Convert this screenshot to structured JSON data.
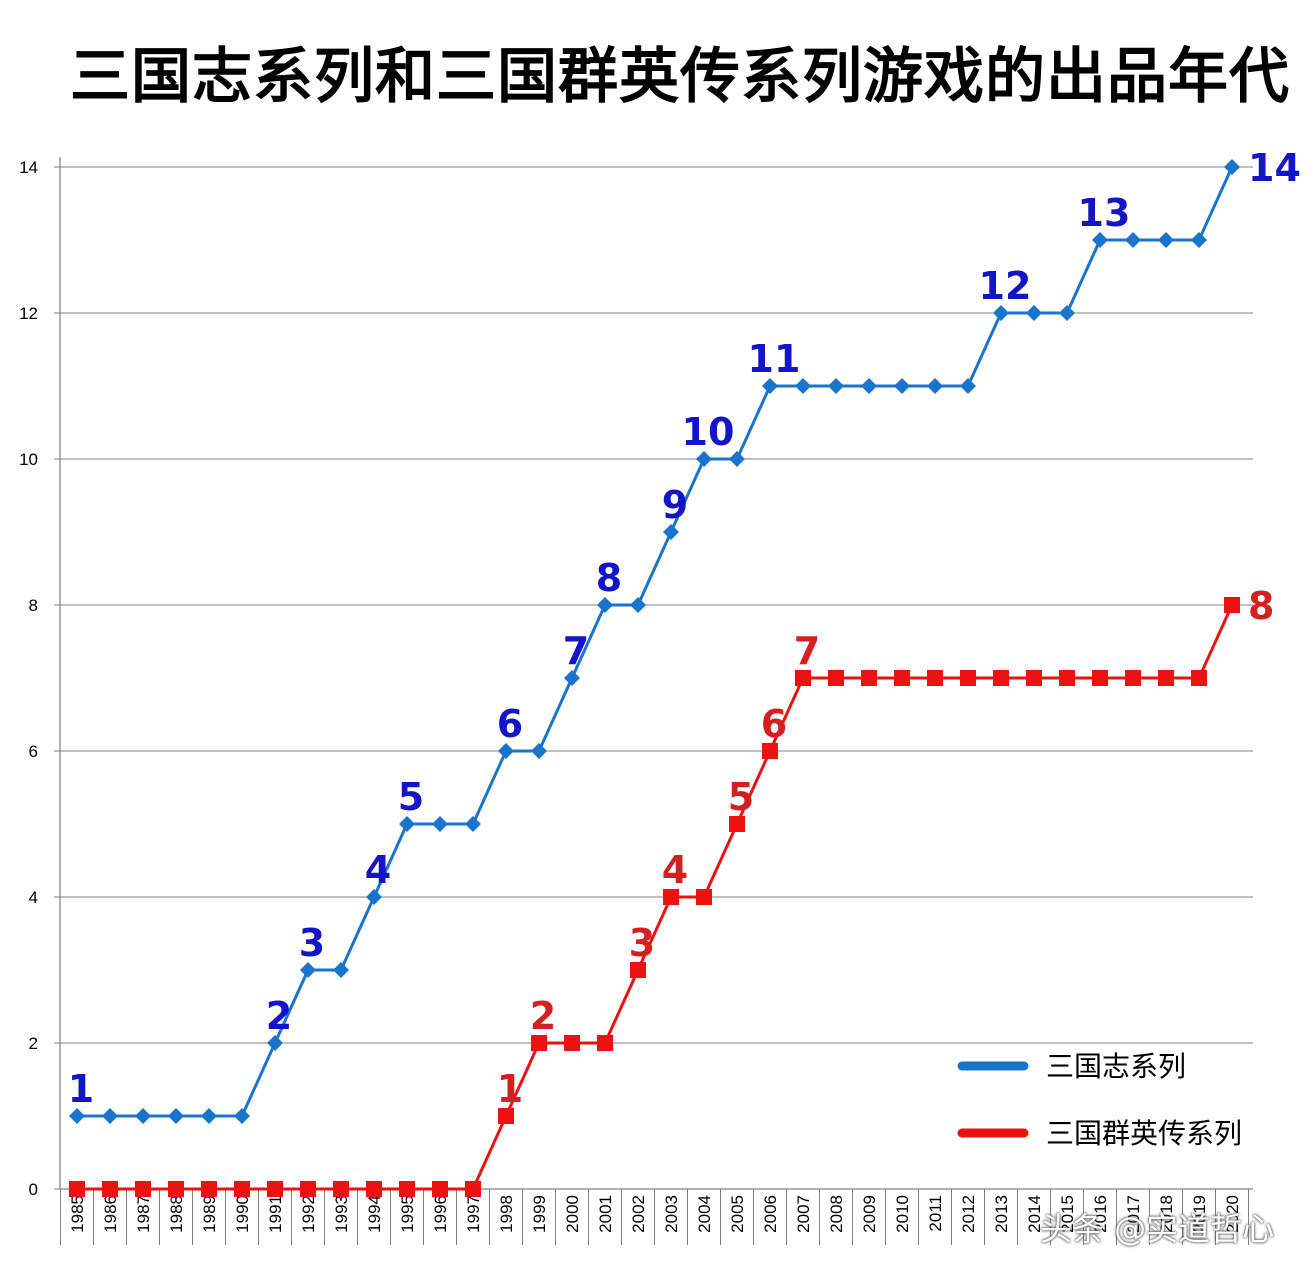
{
  "chart_data": {
    "type": "line",
    "title": "三国志系列和三国群英传系列游戏的出品年代",
    "xlabel": "",
    "ylabel": "",
    "x": [
      1985,
      1986,
      1987,
      1988,
      1989,
      1990,
      1991,
      1992,
      1993,
      1994,
      1995,
      1996,
      1997,
      1998,
      1999,
      2000,
      2001,
      2002,
      2003,
      2004,
      2005,
      2006,
      2007,
      2008,
      2009,
      2010,
      2011,
      2012,
      2013,
      2014,
      2015,
      2016,
      2017,
      2018,
      2019,
      2020
    ],
    "ylim": [
      0,
      14
    ],
    "yticks": [
      0,
      2,
      4,
      6,
      8,
      10,
      12,
      14
    ],
    "grid": true,
    "legend_position": "bottom-right",
    "series": [
      {
        "name": "三国志系列",
        "color": "#1874CD",
        "label_color": "#1414C8",
        "marker": "diamond",
        "values": [
          1,
          1,
          1,
          1,
          1,
          1,
          2,
          3,
          3,
          4,
          5,
          5,
          5,
          6,
          6,
          7,
          8,
          8,
          9,
          10,
          10,
          11,
          11,
          11,
          11,
          11,
          11,
          11,
          12,
          12,
          12,
          13,
          13,
          13,
          13,
          14
        ],
        "point_labels": [
          {
            "index": 0,
            "text": "1"
          },
          {
            "index": 6,
            "text": "2"
          },
          {
            "index": 7,
            "text": "3"
          },
          {
            "index": 9,
            "text": "4"
          },
          {
            "index": 10,
            "text": "5"
          },
          {
            "index": 13,
            "text": "6"
          },
          {
            "index": 15,
            "text": "7"
          },
          {
            "index": 16,
            "text": "8"
          },
          {
            "index": 18,
            "text": "9"
          },
          {
            "index": 19,
            "text": "10"
          },
          {
            "index": 21,
            "text": "11"
          },
          {
            "index": 28,
            "text": "12"
          },
          {
            "index": 31,
            "text": "13"
          },
          {
            "index": 35,
            "text": "14"
          }
        ]
      },
      {
        "name": "三国群英传系列",
        "color": "#EE1111",
        "label_color": "#D42020",
        "marker": "square",
        "values": [
          0,
          0,
          0,
          0,
          0,
          0,
          0,
          0,
          0,
          0,
          0,
          0,
          0,
          1,
          2,
          2,
          2,
          3,
          4,
          4,
          5,
          6,
          7,
          7,
          7,
          7,
          7,
          7,
          7,
          7,
          7,
          7,
          7,
          7,
          7,
          8
        ],
        "point_labels": [
          {
            "index": 13,
            "text": "1"
          },
          {
            "index": 14,
            "text": "2"
          },
          {
            "index": 17,
            "text": "3"
          },
          {
            "index": 18,
            "text": "4"
          },
          {
            "index": 20,
            "text": "5"
          },
          {
            "index": 21,
            "text": "6"
          },
          {
            "index": 22,
            "text": "7"
          },
          {
            "index": 35,
            "text": "8"
          }
        ]
      }
    ]
  },
  "watermark": "头条 @实道哲心"
}
